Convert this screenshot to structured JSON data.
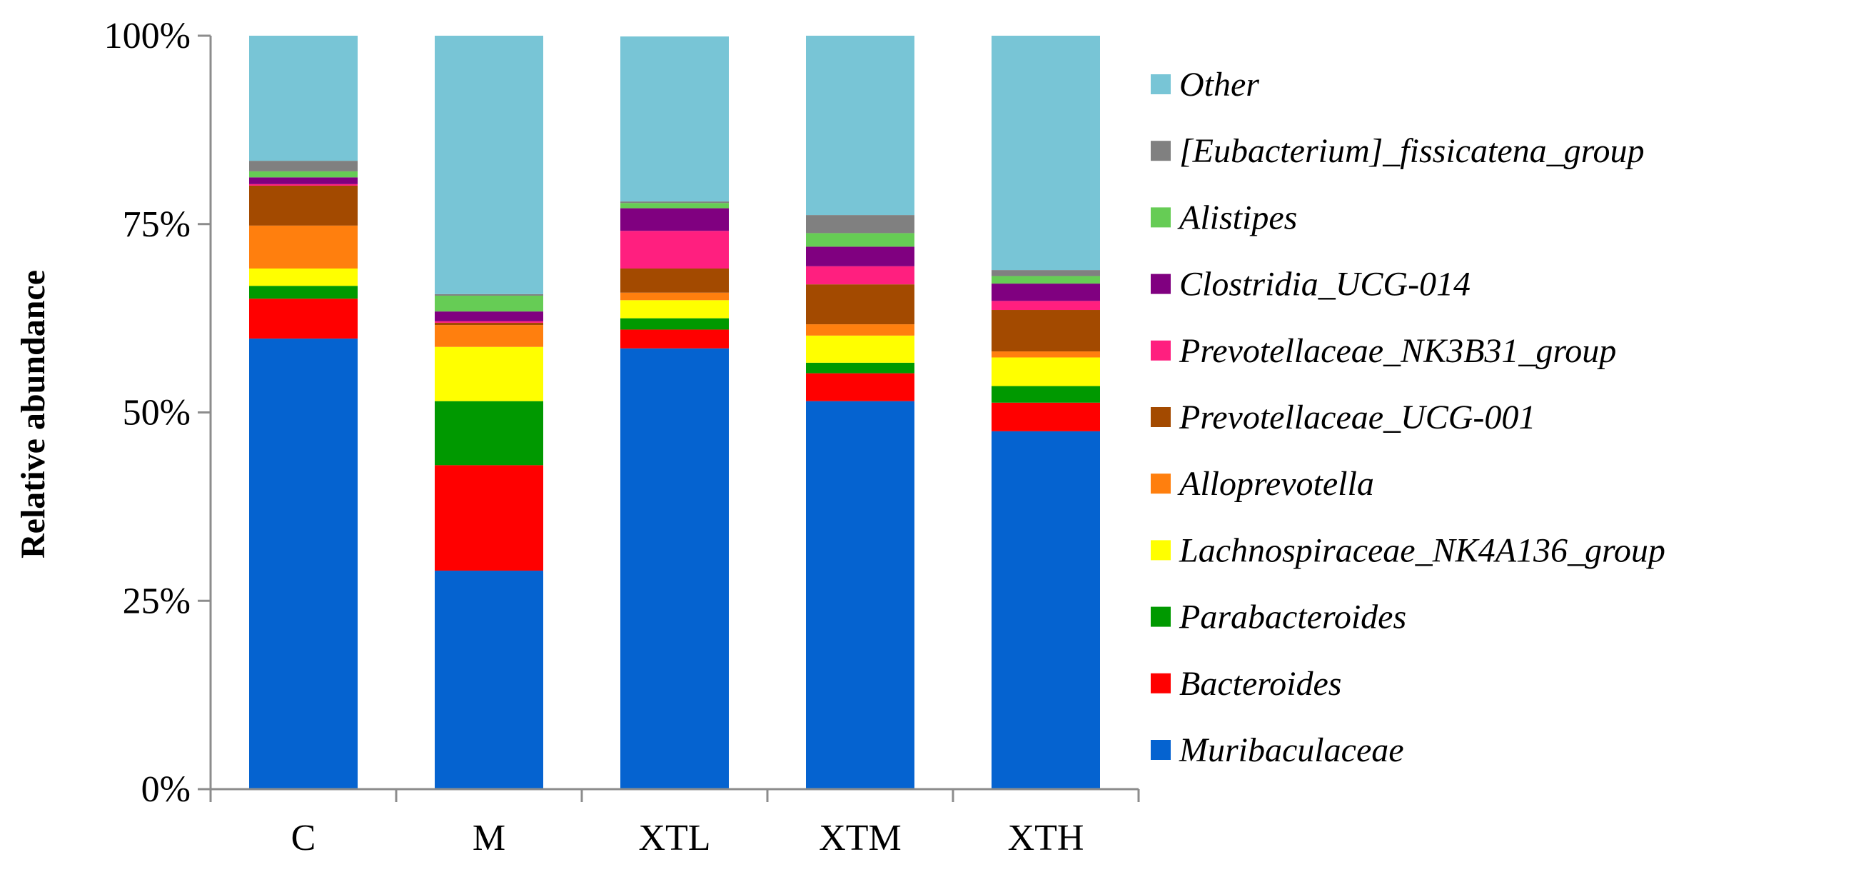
{
  "chart_data": {
    "type": "bar",
    "stacked": true,
    "percent": true,
    "title": "",
    "xlabel": "",
    "ylabel": "Relative abundance",
    "ylim": [
      0,
      100
    ],
    "yticks": [
      "0%",
      "25%",
      "50%",
      "75%",
      "100%"
    ],
    "ytick_values": [
      0,
      25,
      50,
      75,
      100
    ],
    "grid": false,
    "legend_position": "right",
    "categories": [
      "C",
      "M",
      "XTL",
      "XTM",
      "XTH"
    ],
    "series": [
      {
        "name": "Muribaculaceae",
        "color": "#0563D0",
        "values": [
          59.8,
          29.0,
          58.5,
          51.5,
          47.5
        ]
      },
      {
        "name": "Bacteroides",
        "color": "#FF0000",
        "values": [
          5.3,
          14.0,
          2.5,
          3.7,
          3.8
        ]
      },
      {
        "name": "Parabacteroides",
        "color": "#009900",
        "values": [
          1.7,
          8.5,
          1.5,
          1.4,
          2.2
        ]
      },
      {
        "name": "Lachnospiraceae_NK4A136_group",
        "color": "#FFFF00",
        "values": [
          2.3,
          7.2,
          2.4,
          3.6,
          3.8
        ]
      },
      {
        "name": "Alloprevotella",
        "color": "#FF7F0E",
        "values": [
          5.7,
          2.9,
          1.0,
          1.5,
          0.8
        ]
      },
      {
        "name": "Prevotellaceae_UCG-001",
        "color": "#A34A00",
        "values": [
          5.3,
          0.3,
          3.2,
          5.3,
          5.5
        ]
      },
      {
        "name": "Prevotellaceae_NK3B31_group",
        "color": "#FF1F7F",
        "values": [
          0.2,
          0.2,
          5.0,
          2.4,
          1.2
        ]
      },
      {
        "name": "Clostridia_UCG-014",
        "color": "#800080",
        "values": [
          0.9,
          1.3,
          3.0,
          2.6,
          2.3
        ]
      },
      {
        "name": "Alistipes",
        "color": "#66CC55",
        "values": [
          0.8,
          2.1,
          0.7,
          1.8,
          1.0
        ]
      },
      {
        "name": "[Eubacterium]_fissicatena_group",
        "color": "#808080",
        "values": [
          1.4,
          0.2,
          0.2,
          2.4,
          0.8
        ]
      },
      {
        "name": "Other",
        "color": "#78C5D6",
        "values": [
          16.6,
          34.3,
          21.9,
          23.8,
          31.1
        ]
      }
    ]
  }
}
